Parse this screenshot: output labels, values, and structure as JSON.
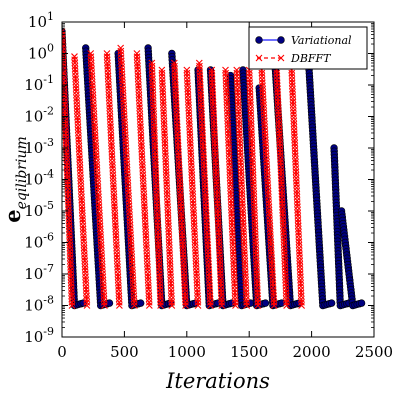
{
  "colors": {
    "variational": "#1a1aff",
    "variational_marker": "#000080",
    "dbfft": "#ff0000"
  },
  "chart_data": {
    "type": "line",
    "xlabel": "Iterations",
    "ylabel": "e_equilibrium",
    "ylabel_main": "e",
    "ylabel_sub": "eqilibrium",
    "xlim": [
      0,
      2500
    ],
    "ylim_exponent": [
      -9,
      1
    ],
    "y_scale": "log",
    "grid": false,
    "legend_position": "top-right",
    "x_ticks": [
      0,
      500,
      1000,
      1500,
      2000,
      2500
    ],
    "y_tick_exponents": [
      -9,
      -8,
      -7,
      -6,
      -5,
      -4,
      -3,
      -2,
      -1,
      0,
      1
    ],
    "series": [
      {
        "name": "Variational",
        "style": "line-circle",
        "segments": [
          {
            "x0": 0,
            "x1": 100,
            "y0": 5,
            "y1": 1e-08
          },
          {
            "x0": 190,
            "x1": 310,
            "y0": 1.5,
            "y1": 1e-08
          },
          {
            "x0": 450,
            "x1": 560,
            "y0": 1.0,
            "y1": 1e-08
          },
          {
            "x0": 690,
            "x1": 800,
            "y0": 1.5,
            "y1": 1e-08
          },
          {
            "x0": 880,
            "x1": 1000,
            "y0": 1.0,
            "y1": 1e-08
          },
          {
            "x0": 1090,
            "x1": 1180,
            "y0": 0.3,
            "y1": 1e-08
          },
          {
            "x0": 1190,
            "x1": 1290,
            "y0": 0.3,
            "y1": 1e-08
          },
          {
            "x0": 1350,
            "x1": 1440,
            "y0": 0.2,
            "y1": 1e-08
          },
          {
            "x0": 1450,
            "x1": 1560,
            "y0": 0.3,
            "y1": 1e-08
          },
          {
            "x0": 1580,
            "x1": 1690,
            "y0": 0.08,
            "y1": 1e-08
          },
          {
            "x0": 1710,
            "x1": 1830,
            "y0": 0.3,
            "y1": 1e-08
          },
          {
            "x0": 1980,
            "x1": 2090,
            "y0": 0.3,
            "y1": 1e-08
          },
          {
            "x0": 2180,
            "x1": 2230,
            "y0": 0.001,
            "y1": 1e-08
          },
          {
            "x0": 2240,
            "x1": 2330,
            "y0": 1e-05,
            "y1": 1e-08
          }
        ]
      },
      {
        "name": "DBFFT",
        "style": "dashed-x",
        "segments": [
          {
            "x0": 0,
            "x1": 80,
            "y0": 5,
            "y1": 1e-08
          },
          {
            "x0": 100,
            "x1": 200,
            "y0": 0.8,
            "y1": 1e-08
          },
          {
            "x0": 230,
            "x1": 340,
            "y0": 1.0,
            "y1": 1e-08
          },
          {
            "x0": 360,
            "x1": 460,
            "y0": 1.0,
            "y1": 1e-08
          },
          {
            "x0": 470,
            "x1": 580,
            "y0": 1.5,
            "y1": 1e-08
          },
          {
            "x0": 600,
            "x1": 700,
            "y0": 1.0,
            "y1": 1e-08
          },
          {
            "x0": 720,
            "x1": 790,
            "y0": 0.5,
            "y1": 1e-08
          },
          {
            "x0": 800,
            "x1": 880,
            "y0": 0.3,
            "y1": 1e-08
          },
          {
            "x0": 900,
            "x1": 990,
            "y0": 0.5,
            "y1": 1e-08
          },
          {
            "x0": 1000,
            "x1": 1090,
            "y0": 0.3,
            "y1": 1e-08
          },
          {
            "x0": 1100,
            "x1": 1190,
            "y0": 0.5,
            "y1": 1e-08
          },
          {
            "x0": 1200,
            "x1": 1280,
            "y0": 0.3,
            "y1": 1e-08
          },
          {
            "x0": 1310,
            "x1": 1390,
            "y0": 0.3,
            "y1": 1e-08
          },
          {
            "x0": 1400,
            "x1": 1480,
            "y0": 0.3,
            "y1": 1e-08
          },
          {
            "x0": 1500,
            "x1": 1570,
            "y0": 0.3,
            "y1": 1e-08
          },
          {
            "x0": 1600,
            "x1": 1700,
            "y0": 0.3,
            "y1": 1e-08
          },
          {
            "x0": 1720,
            "x1": 1800,
            "y0": 0.3,
            "y1": 1e-08
          },
          {
            "x0": 1840,
            "x1": 1920,
            "y0": 0.3,
            "y1": 1e-08
          }
        ]
      }
    ]
  }
}
